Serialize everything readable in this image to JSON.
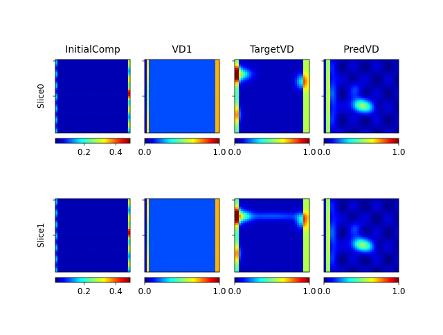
{
  "chart_data": {
    "type": "heatmap",
    "colormap": "jet",
    "grid": false,
    "columns": [
      {
        "title": "InitialComp",
        "colorbar": {
          "range": [
            0.02,
            0.49
          ],
          "ticks": [
            0.2,
            0.4
          ],
          "tick_labels": [
            "0.2",
            "0.4"
          ]
        }
      },
      {
        "title": "VD1",
        "colorbar": {
          "range": [
            0.0,
            1.0
          ],
          "ticks": [
            0.0,
            1.0
          ],
          "tick_labels": [
            "0.0",
            "1.0"
          ]
        }
      },
      {
        "title": "TargetVD",
        "colorbar": {
          "range": [
            0.0,
            1.0
          ],
          "ticks": [
            0.0,
            1.0
          ],
          "tick_labels": [
            "0.0",
            "1.0"
          ]
        }
      },
      {
        "title": "PredVD",
        "colorbar": {
          "range": [
            0.0,
            1.0
          ],
          "ticks": [
            0.0,
            1.0
          ],
          "tick_labels": [
            "0.0",
            "1.0"
          ]
        }
      }
    ],
    "rows": [
      {
        "label": "Slice0"
      },
      {
        "label": "Slice1"
      }
    ],
    "field_patterns": {
      "InitialComp": "near-uniform ~0.05 with bright vertical strips at left (~0.3) and right (~0.45) edges",
      "VD1": "uniform ~0.2 with cyan-yellow strips at left and right edges (~0.8)",
      "TargetVD": "low background with edge strips; hot spots near left edge (~1.0) and right edge",
      "PredVD": "low background, edge strip near left, diffuse blob near centre (~0.45)"
    }
  }
}
